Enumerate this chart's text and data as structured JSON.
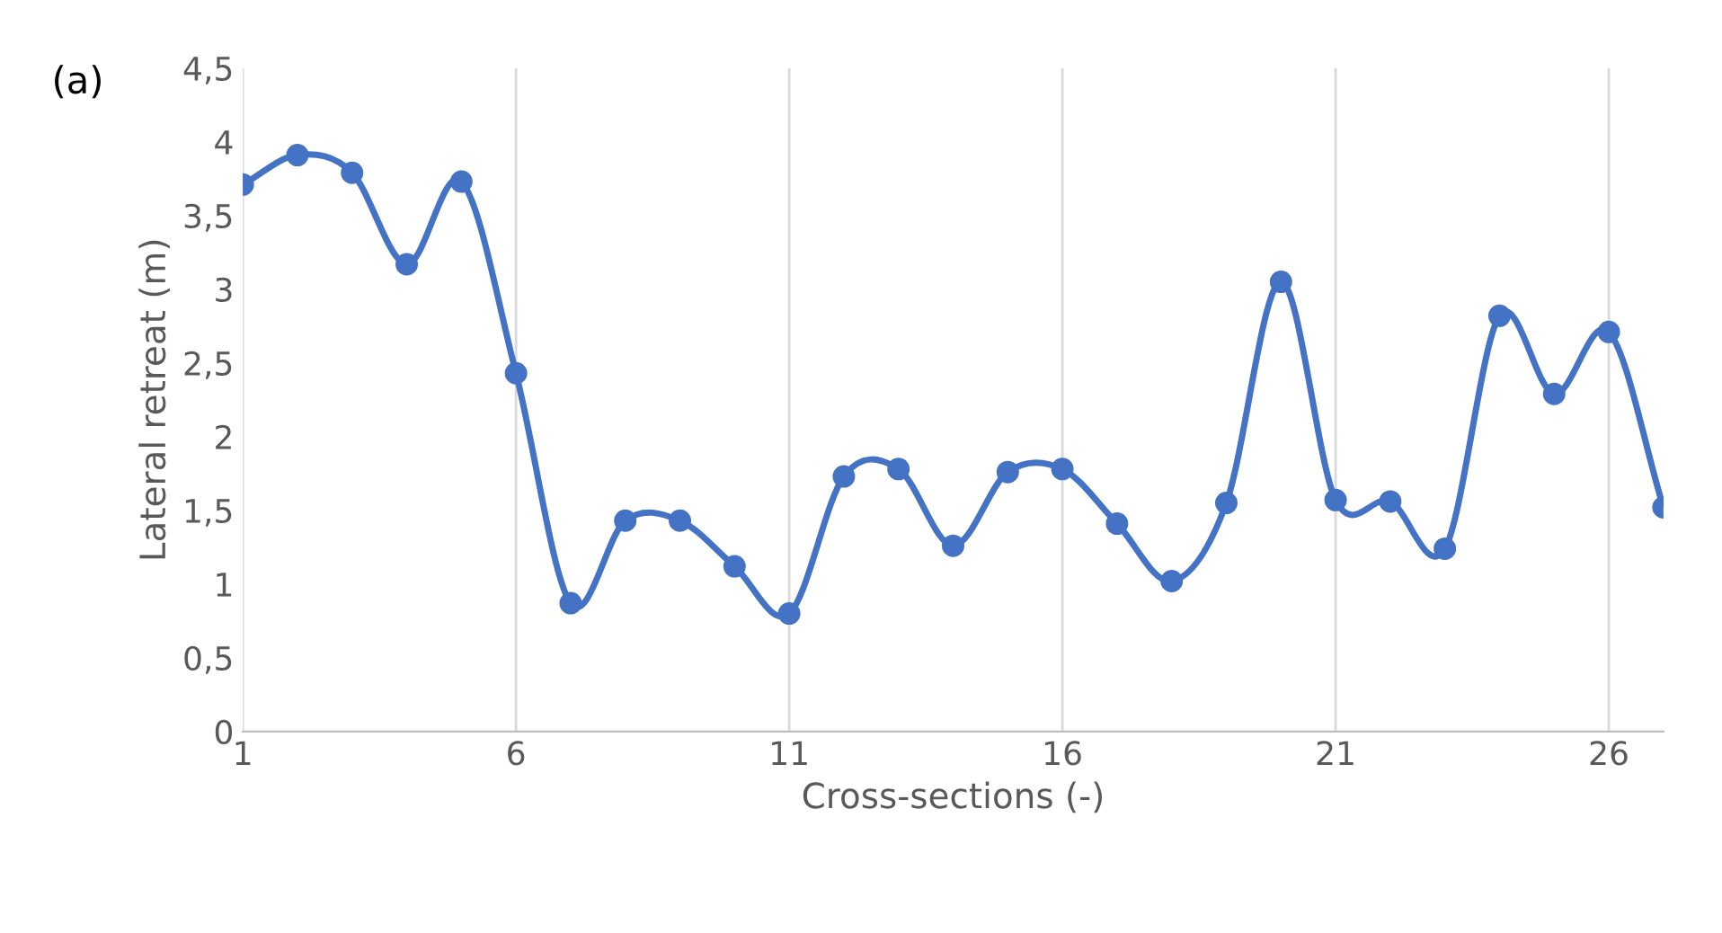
{
  "chart_data": {
    "type": "line",
    "xlabel": "Cross-sections (-)",
    "ylabel": "Lateral retreat (m)",
    "annotations": [
      "(a)"
    ],
    "x": [
      1,
      2,
      3,
      4,
      5,
      6,
      7,
      8,
      9,
      10,
      11,
      12,
      13,
      14,
      15,
      16,
      17,
      18,
      19,
      20,
      21,
      22,
      23,
      24,
      25,
      26,
      27
    ],
    "series": [
      {
        "color": "#4472c4",
        "values": [
          3.71,
          3.91,
          3.79,
          3.17,
          3.73,
          2.43,
          0.87,
          1.43,
          1.43,
          1.12,
          0.8,
          1.73,
          1.78,
          1.26,
          1.76,
          1.78,
          1.41,
          1.02,
          1.55,
          3.05,
          1.57,
          1.56,
          1.24,
          2.82,
          2.29,
          2.71,
          1.52
        ]
      }
    ],
    "xlim": [
      1,
      27
    ],
    "xticks": [
      1,
      6,
      11,
      16,
      21,
      26
    ],
    "ylim": [
      0,
      4.5
    ],
    "yticks": [
      0,
      {
        "value": 0.5,
        "label": "0,5"
      },
      1,
      {
        "value": 1.5,
        "label": "1,5"
      },
      2,
      {
        "value": 2.5,
        "label": "2,5"
      },
      3,
      {
        "value": 3.5,
        "label": "3,5"
      },
      4,
      {
        "value": 4.5,
        "label": "4,5"
      }
    ],
    "grid": "x",
    "marker": "circle",
    "line_style": "solid",
    "legend": false
  }
}
